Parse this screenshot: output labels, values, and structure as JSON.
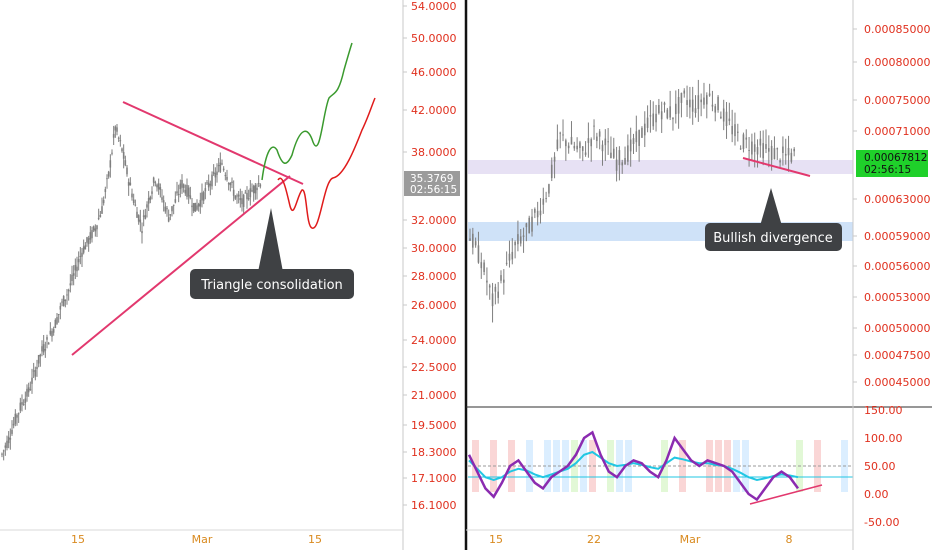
{
  "colors": {
    "axis_text": "#e0301e",
    "date_text": "#d98a1f",
    "candle": "#7f7f7f",
    "triangle_line": "#e2386e",
    "bull_projection": "#3a9a2e",
    "bear_projection": "#e01b1b",
    "callout_bg": "#3f4144",
    "left_price_tag_bg": "#9b9b9b",
    "right_price_tag_bg": "#1fd02a",
    "support_zone": "#cfe2f8",
    "resistance_zone": "#e7e1f4",
    "osc_purple": "#8b2bb0",
    "osc_cyan": "#21c7e3",
    "osc_green": "#39a86c"
  },
  "chart_data": [
    {
      "type": "candlestick",
      "title": "",
      "y_axis_ticks": [
        "54.0000",
        "50.0000",
        "46.0000",
        "42.0000",
        "38.0000",
        "35.3769",
        "32.0000",
        "30.0000",
        "28.0000",
        "26.0000",
        "24.0000",
        "22.5000",
        "21.0000",
        "19.5000",
        "18.3000",
        "17.1000",
        "16.1000"
      ],
      "x_axis_ticks": [
        "15",
        "Mar",
        "15"
      ],
      "price_tag": {
        "price": "35.3769",
        "countdown": "02:56:15"
      },
      "annotations": [
        "Triangle consolidation"
      ],
      "close_series_sample": [
        18.2,
        18.9,
        19.8,
        20.6,
        21.2,
        22.3,
        23.4,
        24.1,
        25.0,
        26.2,
        27.1,
        28.4,
        29.8,
        30.6,
        31.5,
        33.0,
        35.8,
        40.2,
        38.1,
        35.4,
        33.2,
        31.6,
        33.8,
        35.6,
        34.0,
        32.4,
        33.6,
        35.1,
        34.3,
        33.0,
        33.9,
        35.0,
        35.8,
        36.9,
        35.5,
        34.1,
        33.5,
        34.2,
        34.8,
        35.4
      ],
      "projections": [
        "bullish path above triangle",
        "bearish retest below triangle"
      ]
    },
    {
      "type": "candlestick",
      "title": "",
      "y_axis_ticks": [
        "0.00085000",
        "0.00080000",
        "0.00075000",
        "0.00071000",
        "0.00067812",
        "0.00063000",
        "0.00059000",
        "0.00056000",
        "0.00053000",
        "0.00050000",
        "0.00047500",
        "0.00045000"
      ],
      "x_axis_ticks": [
        "15",
        "22",
        "Mar",
        "8"
      ],
      "price_tag": {
        "price": "0.00067812",
        "countdown": "02:56:15"
      },
      "annotations": [
        "Bullish divergence"
      ],
      "close_series_sample": [
        0.000585,
        0.00056,
        0.00052,
        0.000545,
        0.000575,
        0.00059,
        0.00061,
        0.00064,
        0.0007,
        0.00069,
        0.00068,
        0.000705,
        0.00069,
        0.00067,
        0.00068,
        0.0007,
        0.00072,
        0.000735,
        0.00073,
        0.00075,
        0.00074,
        0.000755,
        0.00074,
        0.000715,
        0.000695,
        0.00069,
        0.000685,
        0.00068,
        0.000675,
        0.000678
      ]
    },
    {
      "type": "line",
      "title": "",
      "y_axis_ticks": [
        "150.00",
        "100.00",
        "50.00",
        "0.00",
        "-50.00"
      ],
      "series": [
        {
          "values": [
            70,
            40,
            10,
            -5,
            20,
            50,
            60,
            40,
            20,
            10,
            30,
            40,
            50,
            70,
            100,
            110,
            70,
            40,
            30,
            50,
            60,
            55,
            40,
            30,
            60,
            100,
            80,
            60,
            50,
            60,
            55,
            50,
            40,
            20,
            0,
            -10,
            10,
            30,
            40,
            30,
            10
          ]
        },
        {
          "values": [
            60,
            45,
            30,
            25,
            30,
            40,
            45,
            42,
            35,
            30,
            35,
            40,
            45,
            55,
            70,
            75,
            65,
            55,
            50,
            52,
            55,
            52,
            48,
            45,
            55,
            65,
            62,
            58,
            55,
            55,
            52,
            50,
            45,
            38,
            30,
            25,
            28,
            32,
            35,
            33,
            30
          ]
        }
      ]
    }
  ]
}
